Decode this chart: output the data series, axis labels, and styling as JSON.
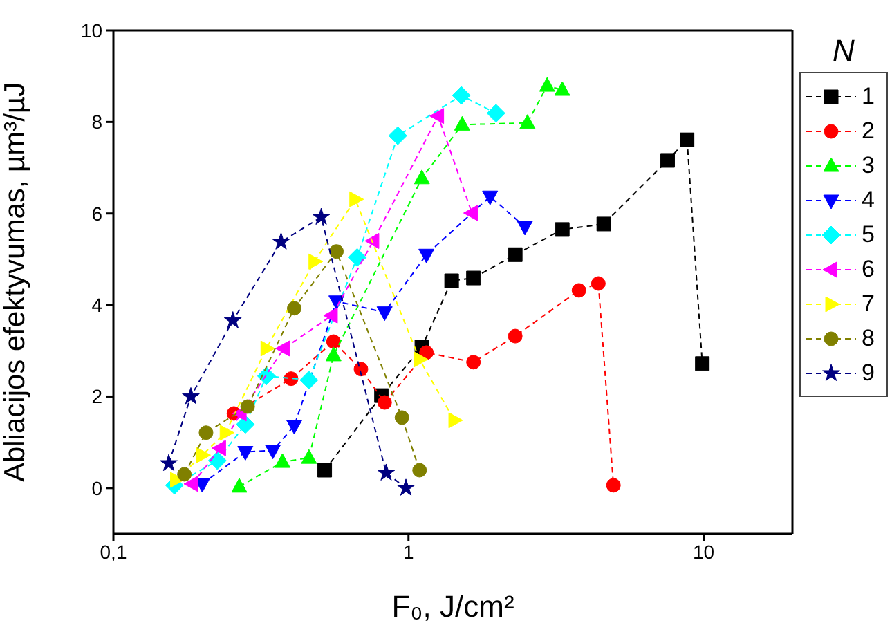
{
  "chart_data": {
    "type": "line",
    "xlabel": "F₀, J/cm²",
    "ylabel": "Abliacijos efektyvumas, µm³/µJ",
    "legend_title": "N",
    "legend": "right",
    "log": "x",
    "grid": false,
    "line_style": "dashed",
    "xlim": [
      0.1,
      20
    ],
    "xticks": [
      {
        "value": 0.1,
        "label": "0,1"
      },
      1,
      10
    ],
    "ylim": [
      -1,
      10
    ],
    "yticks": [
      0,
      2,
      4,
      6,
      8,
      10
    ],
    "series": [
      {
        "name": "1",
        "color": "#000000",
        "marker": "square",
        "x": [
          0.52,
          0.81,
          1.11,
          1.4,
          1.66,
          2.3,
          3.32,
          4.59,
          7.55,
          8.79,
          9.9
        ],
        "values": [
          0.39,
          2.02,
          3.08,
          4.53,
          4.59,
          5.1,
          5.65,
          5.77,
          7.16,
          7.61,
          2.72
        ]
      },
      {
        "name": "2",
        "color": "#ff0000",
        "marker": "circle",
        "x": [
          0.256,
          0.4,
          0.557,
          0.69,
          0.83,
          1.15,
          1.66,
          2.3,
          3.78,
          4.4,
          4.95
        ],
        "values": [
          1.63,
          2.39,
          3.2,
          2.6,
          1.87,
          2.96,
          2.75,
          3.32,
          4.32,
          4.47,
          0.06
        ]
      },
      {
        "name": "3",
        "color": "#00ff00",
        "marker": "triangle",
        "x": [
          0.267,
          0.374,
          0.46,
          0.557,
          1.11,
          1.52,
          2.53,
          2.95,
          3.32
        ],
        "values": [
          0.03,
          0.57,
          0.66,
          2.9,
          6.77,
          7.94,
          7.98,
          8.79,
          8.7
        ]
      },
      {
        "name": "4",
        "color": "#0000ff",
        "marker": "triangle-down",
        "x": [
          0.2,
          0.28,
          0.347,
          0.41,
          0.57,
          0.83,
          1.15,
          1.89,
          2.48
        ],
        "values": [
          0.09,
          0.79,
          0.82,
          1.36,
          4.08,
          3.84,
          5.1,
          6.37,
          5.71
        ]
      },
      {
        "name": "5",
        "color": "#00ffff",
        "marker": "diamond",
        "x": [
          0.161,
          0.225,
          0.28,
          0.33,
          0.46,
          0.67,
          0.92,
          1.51,
          1.98
        ],
        "values": [
          0.06,
          0.6,
          1.39,
          2.45,
          2.36,
          5.04,
          7.7,
          8.58,
          8.19
        ]
      },
      {
        "name": "6",
        "color": "#ff00ff",
        "marker": "triangle-left",
        "x": [
          0.185,
          0.23,
          0.27,
          0.378,
          0.55,
          0.76,
          1.26,
          1.64
        ],
        "values": [
          0.09,
          0.87,
          1.63,
          3.05,
          3.77,
          5.4,
          8.13,
          6.01
        ]
      },
      {
        "name": "7",
        "color": "#ffff00",
        "marker": "triangle-right",
        "x": [
          0.163,
          0.2,
          0.24,
          0.33,
          0.48,
          0.66,
          1.09,
          1.43
        ],
        "values": [
          0.18,
          0.72,
          1.21,
          3.05,
          4.95,
          6.31,
          2.81,
          1.48
        ]
      },
      {
        "name": "8",
        "color": "#808000",
        "marker": "circle",
        "x": [
          0.174,
          0.206,
          0.285,
          0.41,
          0.57,
          0.95,
          1.09
        ],
        "values": [
          0.3,
          1.21,
          1.78,
          3.93,
          5.17,
          1.54,
          0.39
        ]
      },
      {
        "name": "9",
        "color": "#000080",
        "marker": "star",
        "x": [
          0.154,
          0.183,
          0.254,
          0.37,
          0.506,
          0.84,
          0.98
        ],
        "values": [
          0.54,
          2.0,
          3.66,
          5.38,
          5.92,
          0.33,
          0.0
        ]
      }
    ]
  }
}
